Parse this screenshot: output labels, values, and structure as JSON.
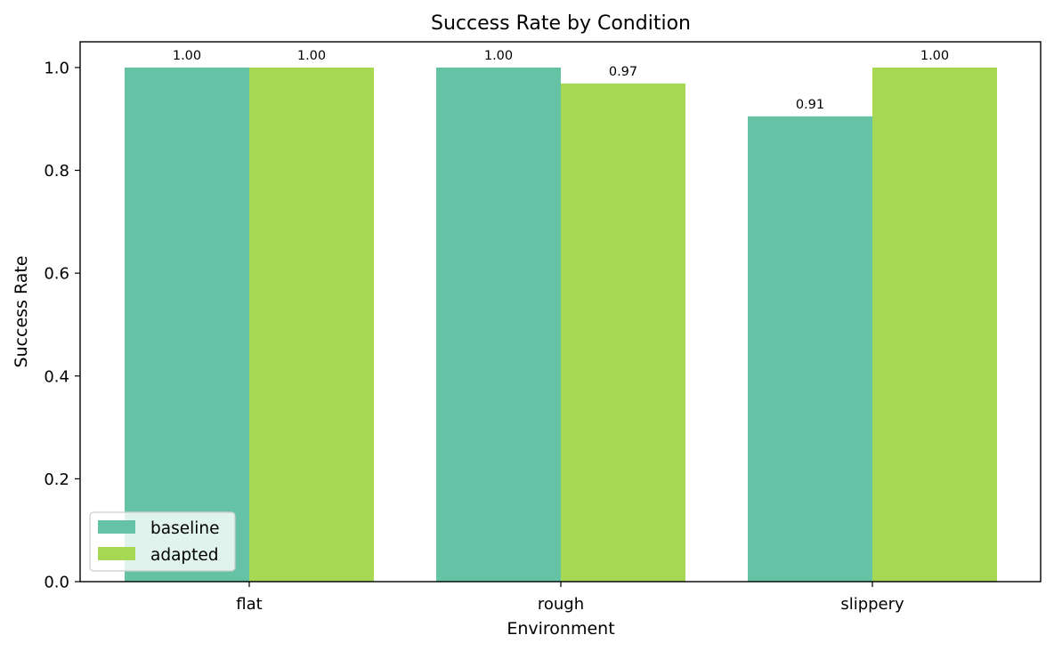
{
  "chart_data": {
    "type": "bar",
    "title": "Success Rate by Condition",
    "xlabel": "Environment",
    "ylabel": "Success Rate",
    "categories": [
      "flat",
      "rough",
      "slippery"
    ],
    "series": [
      {
        "name": "baseline",
        "values": [
          1.0,
          1.0,
          0.905
        ],
        "labels": [
          "1.00",
          "1.00",
          "0.91"
        ],
        "color": "#66c2a5"
      },
      {
        "name": "adapted",
        "values": [
          1.0,
          0.969,
          1.0
        ],
        "labels": [
          "1.00",
          "0.97",
          "1.00"
        ],
        "color": "#a6d854"
      }
    ],
    "ylim": [
      0,
      1.05
    ],
    "yticks": [
      "0.0",
      "0.2",
      "0.4",
      "0.6",
      "0.8",
      "1.0"
    ],
    "grid": false,
    "legend_position": "lower-left"
  }
}
